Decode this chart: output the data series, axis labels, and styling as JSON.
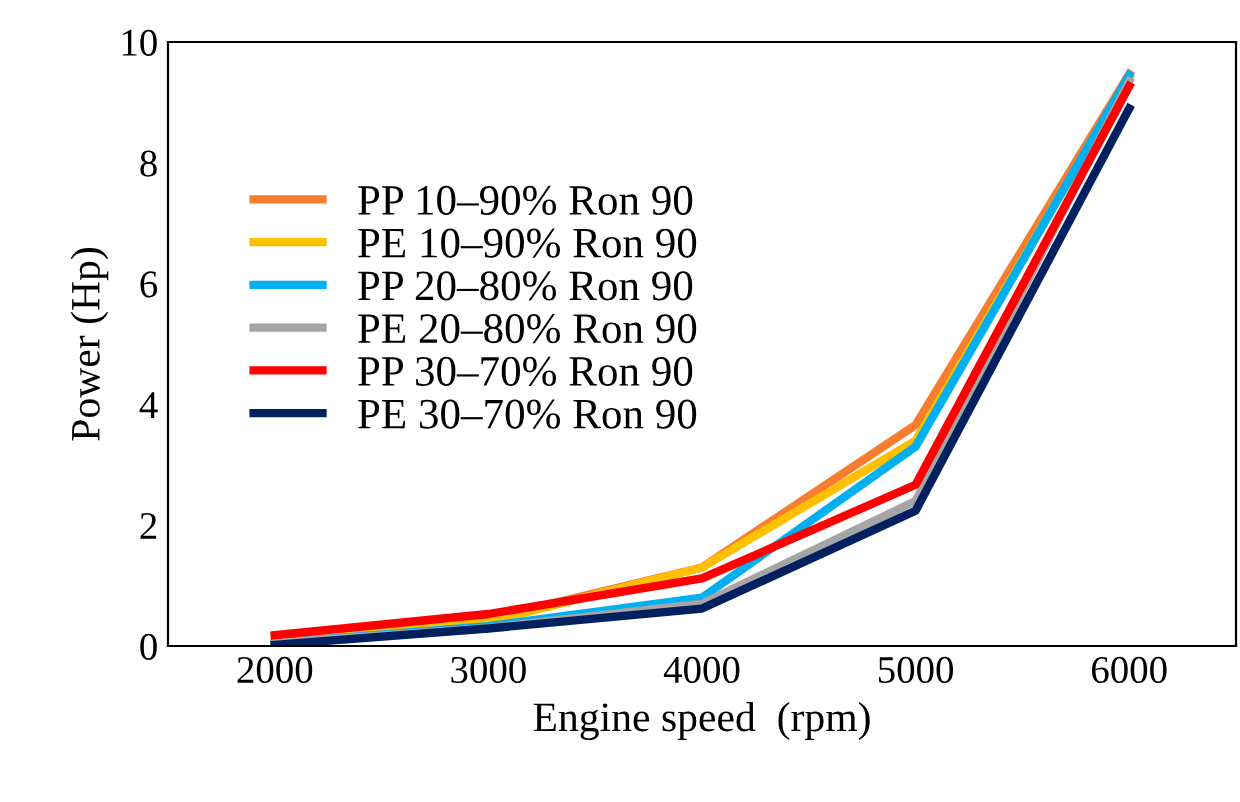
{
  "chart_data": {
    "type": "line",
    "xlabel": "Engine speed  (rpm)",
    "ylabel": "Power (Hp)",
    "categories": [
      "2000",
      "3000",
      "4000",
      "5000",
      "6000"
    ],
    "ylim": [
      0,
      10
    ],
    "yticks": [
      0,
      2,
      4,
      6,
      8,
      10
    ],
    "grid": false,
    "legend": "top left",
    "marker": "none",
    "line_style": "solid",
    "series": [
      {
        "name": "PP 10–90% Ron 90",
        "color": "#f97d2e",
        "values": [
          0.15,
          0.45,
          1.3,
          3.66,
          9.47
        ]
      },
      {
        "name": "PE 10–90% Ron 90",
        "color": "#ffc000",
        "values": [
          0.05,
          0.4,
          1.3,
          3.4,
          9.4
        ]
      },
      {
        "name": "PP 20–80% Ron 90",
        "color": "#00b0f0",
        "values": [
          0.05,
          0.33,
          0.8,
          3.3,
          9.45
        ]
      },
      {
        "name": "PE 20–80% Ron 90",
        "color": "#a5a5a5",
        "values": [
          0.05,
          0.3,
          0.7,
          2.4,
          9.35
        ]
      },
      {
        "name": "PP 30–70% Ron 90",
        "color": "#ff0000",
        "values": [
          0.18,
          0.53,
          1.12,
          2.67,
          9.27
        ]
      },
      {
        "name": "PE 30–70% Ron 90",
        "color": "#002060",
        "values": [
          0.02,
          0.29,
          0.62,
          2.24,
          8.9
        ]
      }
    ]
  }
}
